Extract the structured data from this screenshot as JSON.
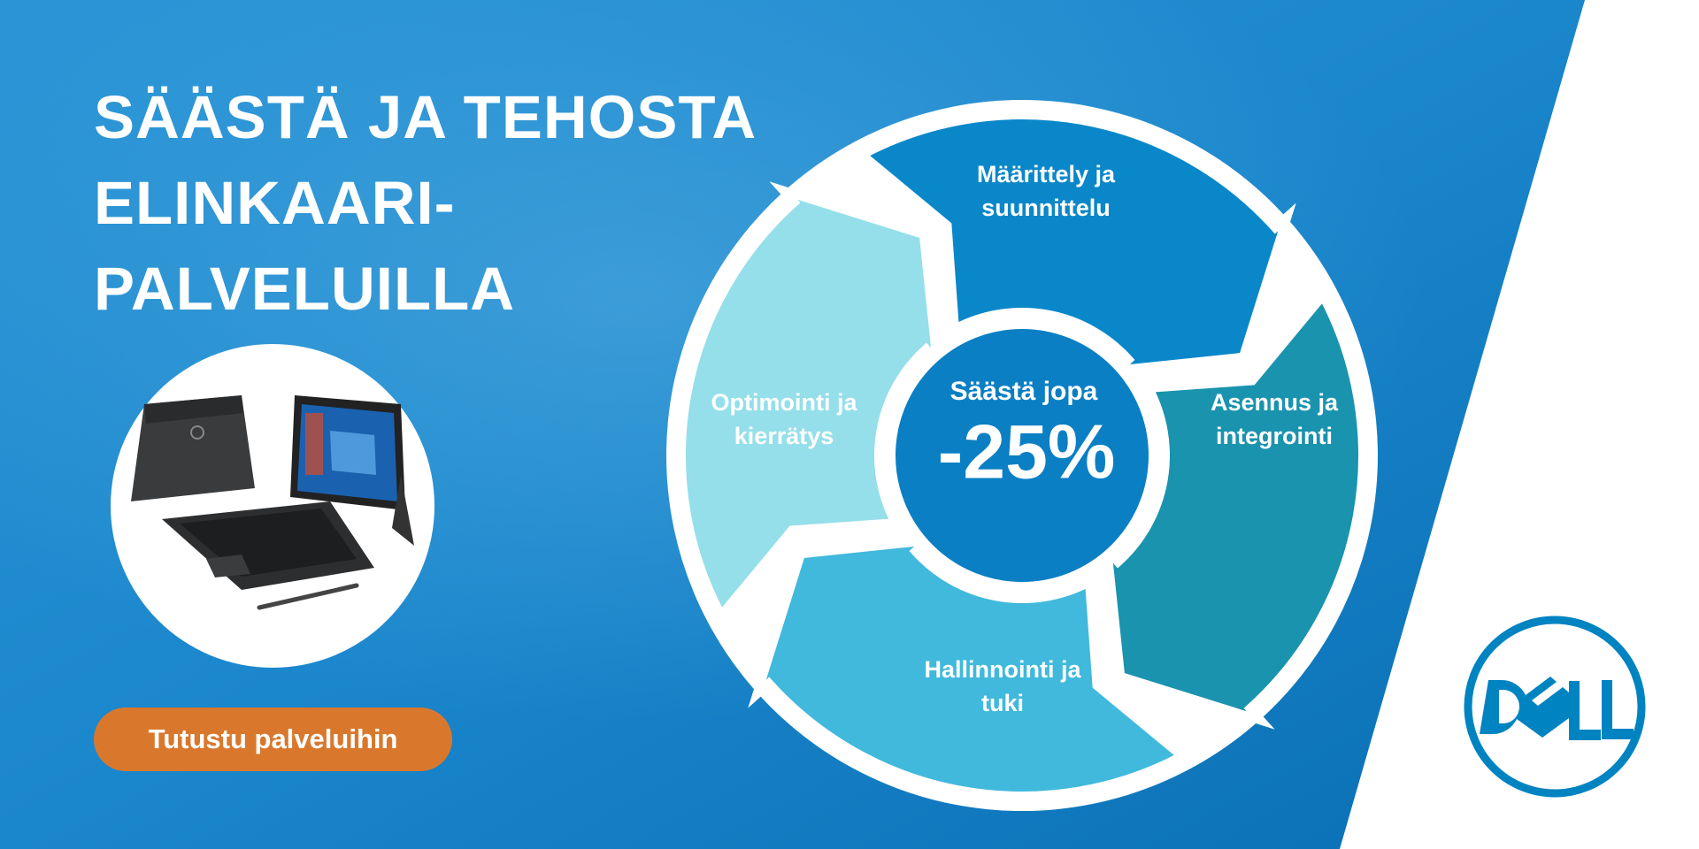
{
  "headline": {
    "lines": [
      "SÄÄSTÄ JA TEHOSTA",
      "ELINKAARI-",
      "PALVELUILLA"
    ]
  },
  "cta": {
    "label": "Tutustu palveluihin"
  },
  "cycle": {
    "segments": [
      {
        "label1": "Määrittely ja",
        "label2": "suunnittelu",
        "color": "#0a87c9"
      },
      {
        "label1": "Asennus ja",
        "label2": "integrointi",
        "color": "#1a93ae"
      },
      {
        "label1": "Hallinnointi ja",
        "label2": "tuki",
        "color": "#40b9dc"
      },
      {
        "label1": "Optimointi ja",
        "label2": "kierrätys",
        "color": "#94dfea"
      }
    ],
    "center": {
      "line1": "Säästä jopa",
      "line2": "-25%"
    }
  },
  "brand": {
    "logo_text": "DELL",
    "color": "#0083c1"
  },
  "colors": {
    "background_blue": "#1787cc",
    "cta": "#d9782d"
  }
}
